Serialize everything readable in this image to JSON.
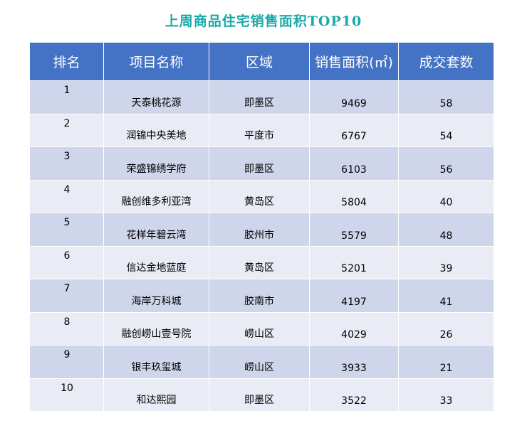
{
  "chart_data": {
    "type": "table",
    "title": "上周商品住宅销售面积TOP10",
    "columns": [
      "排名",
      "项目名称",
      "区域",
      "销售面积(㎡)",
      "成交套数"
    ],
    "rows": [
      {
        "rank": "1",
        "project": "天泰桃花源",
        "region": "即墨区",
        "area": 9469,
        "units": 58
      },
      {
        "rank": "2",
        "project": "润锦中央美地",
        "region": "平度市",
        "area": 6767,
        "units": 54
      },
      {
        "rank": "3",
        "project": "荣盛锦绣学府",
        "region": "即墨区",
        "area": 6103,
        "units": 56
      },
      {
        "rank": "4",
        "project": "融创维多利亚湾",
        "region": "黄岛区",
        "area": 5804,
        "units": 40
      },
      {
        "rank": "5",
        "project": "花样年碧云湾",
        "region": "胶州市",
        "area": 5579,
        "units": 48
      },
      {
        "rank": "6",
        "project": "信达金地蓝庭",
        "region": "黄岛区",
        "area": 5201,
        "units": 39
      },
      {
        "rank": "7",
        "project": "海岸万科城",
        "region": "胶南市",
        "area": 4197,
        "units": 41
      },
      {
        "rank": "8",
        "project": "融创崂山壹号院",
        "region": "崂山区",
        "area": 4029,
        "units": 26
      },
      {
        "rank": "9",
        "project": "银丰玖玺城",
        "region": "崂山区",
        "area": 3933,
        "units": 21
      },
      {
        "rank": "10",
        "project": "和达熙园",
        "region": "即墨区",
        "area": 3522,
        "units": 33
      }
    ]
  },
  "colors": {
    "title": "#19a8a8",
    "header_bg": "#4472c4",
    "row_odd": "#cfd5ea",
    "row_even": "#e9ebf5"
  }
}
